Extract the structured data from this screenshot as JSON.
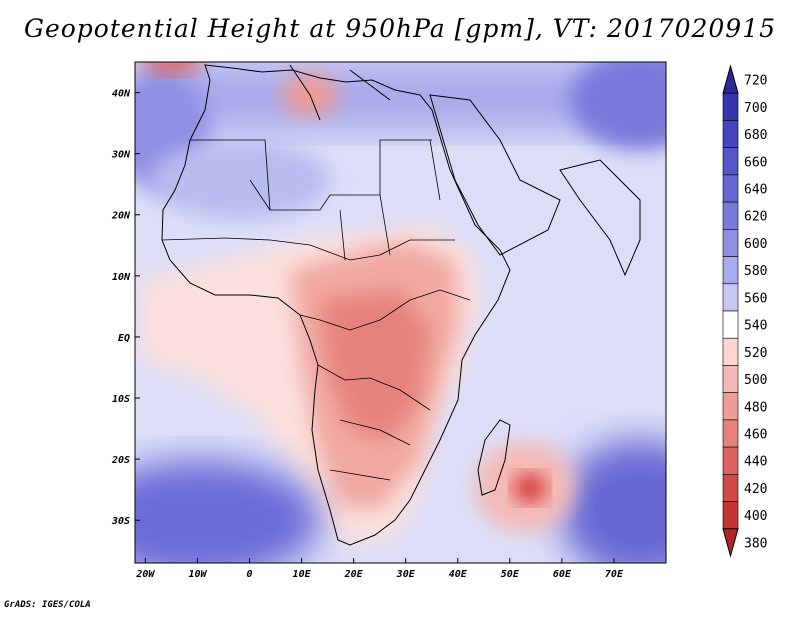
{
  "title": "Geopotential Height at 950hPa [gpm], VT: 2017020915",
  "credit": "GrADS: IGES/COLA",
  "colors": {
    "ocean_south": "#6a6ad8",
    "ocean_mid": "#b9bcef",
    "ocean_pale": "#dcdef8",
    "land_pale": "#fbe0dd",
    "land_mid": "#f1a9a2",
    "land_deep": "#e6827b",
    "low_center": "#d22a2a",
    "border": "#000000"
  },
  "chart_data": {
    "type": "heatmap",
    "title": "Geopotential Height at 950hPa [gpm], VT: 2017020915",
    "variable": "Geopotential Height",
    "level_hpa": 950,
    "units": "gpm",
    "valid_time": "2017020915",
    "x_ticks": [
      "20W",
      "10W",
      "0",
      "10E",
      "20E",
      "30E",
      "40E",
      "50E",
      "60E",
      "70E"
    ],
    "y_ticks": [
      "40N",
      "30N",
      "20N",
      "10N",
      "EQ",
      "10S",
      "20S",
      "30S"
    ],
    "xlim": [
      -22,
      80
    ],
    "ylim": [
      -37,
      45
    ],
    "colorbar": {
      "levels": [
        720,
        700,
        680,
        660,
        640,
        620,
        600,
        580,
        560,
        540,
        520,
        500,
        480,
        460,
        440,
        420,
        400,
        380
      ],
      "colors": [
        "#29299a",
        "#3434ae",
        "#4444c0",
        "#5555cc",
        "#6666d4",
        "#7a7add",
        "#8f8fe4",
        "#a8aaeb",
        "#c6c8f2",
        "#ffffff",
        "#fbd6d3",
        "#f4b9b4",
        "#ee9e98",
        "#e6827b",
        "#dd6462",
        "#d44848",
        "#c73434",
        "#b52424"
      ]
    }
  }
}
